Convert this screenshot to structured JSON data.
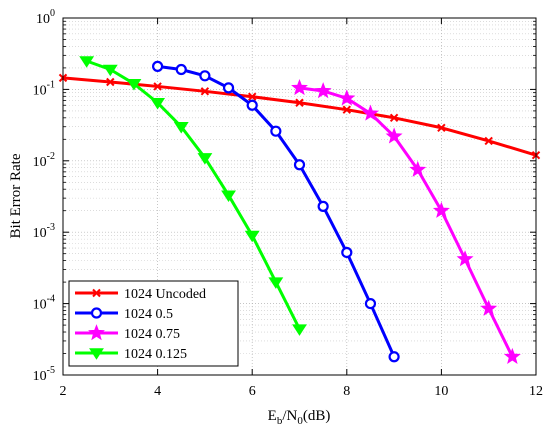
{
  "chart_data": {
    "type": "line",
    "xlabel": {
      "main": "E",
      "sub1": "b",
      "mid": "/N",
      "sub2": "0",
      "tail": "(dB)"
    },
    "ylabel": "Bit Error Rate",
    "xlim": [
      2,
      12
    ],
    "ylim": [
      1e-05,
      1
    ],
    "yscale": "log",
    "grid": true,
    "minor_grid": true,
    "legend_position": "bottom-left",
    "x_ticks": [
      {
        "value": 2,
        "label": "2"
      },
      {
        "value": 4,
        "label": "4"
      },
      {
        "value": 6,
        "label": "6"
      },
      {
        "value": 8,
        "label": "8"
      },
      {
        "value": 10,
        "label": "10"
      },
      {
        "value": 12,
        "label": "12"
      }
    ],
    "y_ticks": [
      {
        "value": 1,
        "base": "10",
        "exp": "0"
      },
      {
        "value": 0.1,
        "base": "10",
        "exp": "-1"
      },
      {
        "value": 0.01,
        "base": "10",
        "exp": "-2"
      },
      {
        "value": 0.001,
        "base": "10",
        "exp": "-3"
      },
      {
        "value": 0.0001,
        "base": "10",
        "exp": "-4"
      },
      {
        "value": 1e-05,
        "base": "10",
        "exp": "-5"
      }
    ],
    "series": [
      {
        "name": "1024 Uncoded",
        "color": "#ff0000",
        "marker": "x",
        "x": [
          2,
          3,
          4,
          5,
          6,
          7,
          8,
          9,
          10,
          11,
          12
        ],
        "y": [
          0.145,
          0.127,
          0.11,
          0.094,
          0.079,
          0.065,
          0.052,
          0.04,
          0.029,
          0.019,
          0.012
        ]
      },
      {
        "name": "1024 0.5",
        "color": "#0000ff",
        "marker": "circle",
        "x": [
          4,
          4.5,
          5,
          5.5,
          6,
          6.5,
          7,
          7.5,
          8,
          8.5,
          9
        ],
        "y": [
          0.21,
          0.19,
          0.155,
          0.105,
          0.06,
          0.026,
          0.0088,
          0.0023,
          0.00052,
          0.0001,
          1.8e-05
        ]
      },
      {
        "name": "1024 0.75",
        "color": "#ff00ff",
        "marker": "star",
        "x": [
          7,
          7.5,
          8,
          8.5,
          9,
          9.5,
          10,
          10.5,
          11,
          11.5
        ],
        "y": [
          0.105,
          0.095,
          0.075,
          0.046,
          0.022,
          0.0075,
          0.002,
          0.00042,
          8.5e-05,
          1.8e-05
        ]
      },
      {
        "name": "1024 0.125",
        "color": "#00ff00",
        "marker": "triangle-down",
        "x": [
          2.5,
          3,
          3.5,
          4,
          4.5,
          5,
          5.5,
          6,
          6.5,
          7
        ],
        "y": [
          0.25,
          0.19,
          0.12,
          0.065,
          0.03,
          0.011,
          0.0033,
          0.0009,
          0.0002,
          4.4e-05
        ]
      }
    ]
  }
}
